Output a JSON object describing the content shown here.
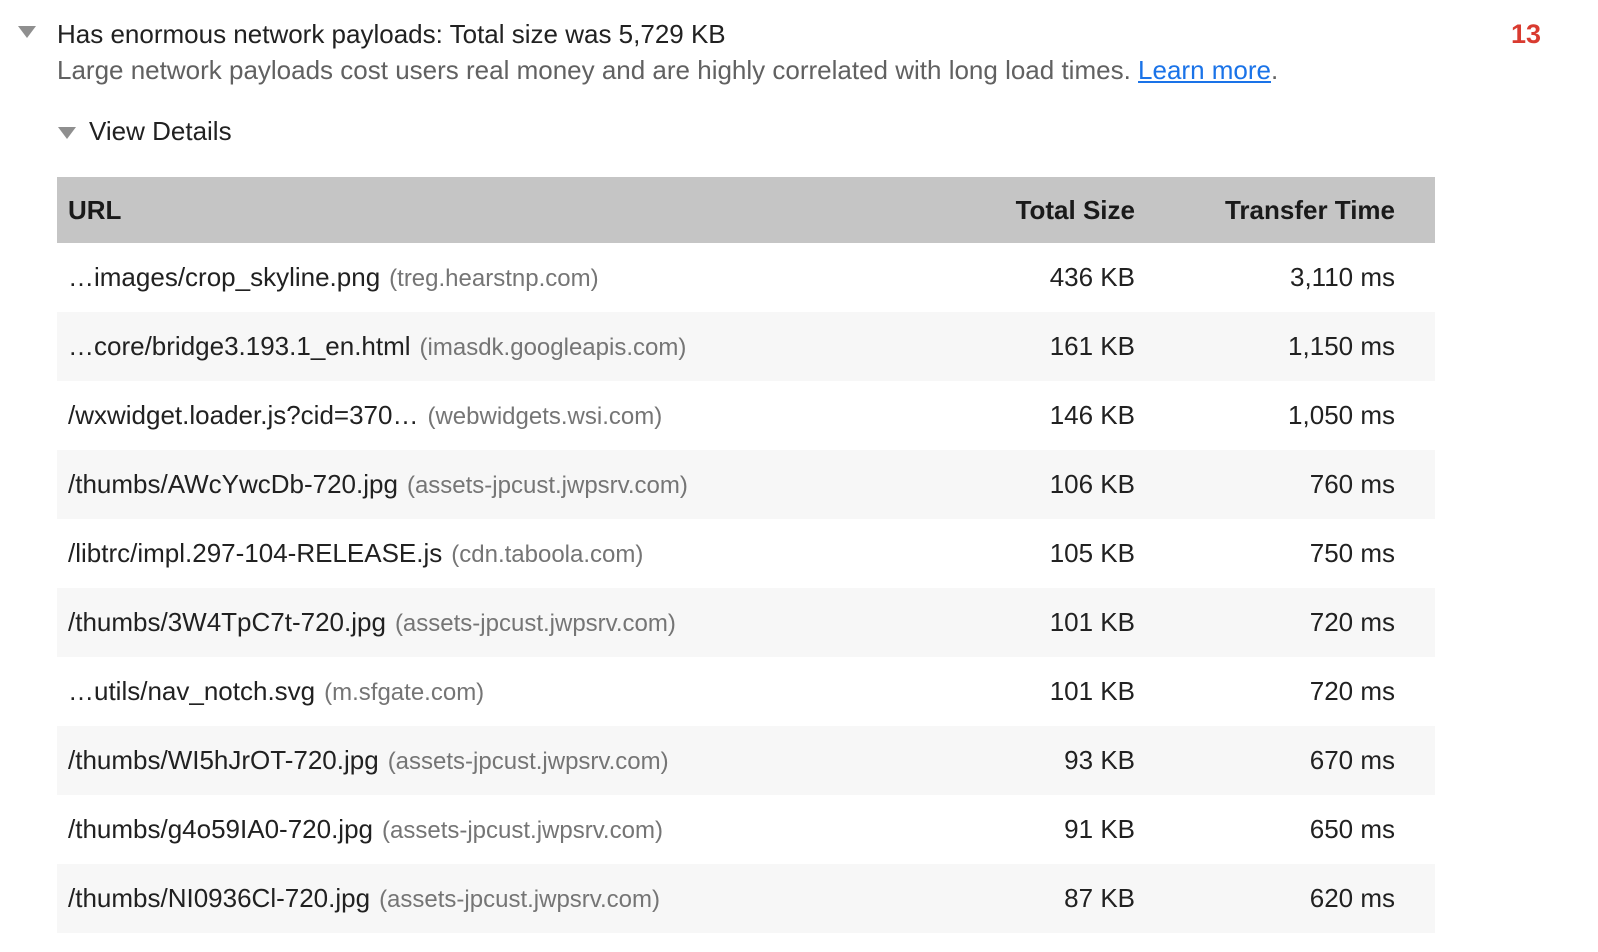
{
  "audit": {
    "title": "Has enormous network payloads: Total size was 5,729 KB",
    "description": "Large network payloads cost users real money and are highly correlated with long load times.",
    "learn_more_label": "Learn more",
    "learn_more_suffix": ".",
    "count_badge": "13",
    "view_details_label": "View Details"
  },
  "icons": {
    "audit_expand": "triangle-down",
    "view_details_expand": "triangle-down"
  },
  "colors": {
    "badge_red": "#d93b30",
    "link_blue": "#1a73e8",
    "table_header_gray": "#c5c5c5",
    "alt_row_gray": "#f7f7f7",
    "domain_gray": "#757575",
    "subtitle_gray": "#616161"
  },
  "table": {
    "columns": [
      "URL",
      "Total Size",
      "Transfer Time"
    ],
    "rows": [
      {
        "url": "…images/crop_skyline.png",
        "domain": "(treg.hearstnp.com)",
        "total_size": "436 KB",
        "transfer_time": "3,110 ms"
      },
      {
        "url": "…core/bridge3.193.1_en.html",
        "domain": "(imasdk.googleapis.com)",
        "total_size": "161 KB",
        "transfer_time": "1,150 ms"
      },
      {
        "url": "/wxwidget.loader.js?cid=370…",
        "domain": "(webwidgets.wsi.com)",
        "total_size": "146 KB",
        "transfer_time": "1,050 ms"
      },
      {
        "url": "/thumbs/AWcYwcDb-720.jpg",
        "domain": "(assets-jpcust.jwpsrv.com)",
        "total_size": "106 KB",
        "transfer_time": "760 ms"
      },
      {
        "url": "/libtrc/impl.297-104-RELEASE.js",
        "domain": "(cdn.taboola.com)",
        "total_size": "105 KB",
        "transfer_time": "750 ms"
      },
      {
        "url": "/thumbs/3W4TpC7t-720.jpg",
        "domain": "(assets-jpcust.jwpsrv.com)",
        "total_size": "101 KB",
        "transfer_time": "720 ms"
      },
      {
        "url": "…utils/nav_notch.svg",
        "domain": "(m.sfgate.com)",
        "total_size": "101 KB",
        "transfer_time": "720 ms"
      },
      {
        "url": "/thumbs/WI5hJrOT-720.jpg",
        "domain": "(assets-jpcust.jwpsrv.com)",
        "total_size": "93 KB",
        "transfer_time": "670 ms"
      },
      {
        "url": "/thumbs/g4o59IA0-720.jpg",
        "domain": "(assets-jpcust.jwpsrv.com)",
        "total_size": "91 KB",
        "transfer_time": "650 ms"
      },
      {
        "url": "/thumbs/NI0936Cl-720.jpg",
        "domain": "(assets-jpcust.jwpsrv.com)",
        "total_size": "87 KB",
        "transfer_time": "620 ms"
      }
    ]
  }
}
